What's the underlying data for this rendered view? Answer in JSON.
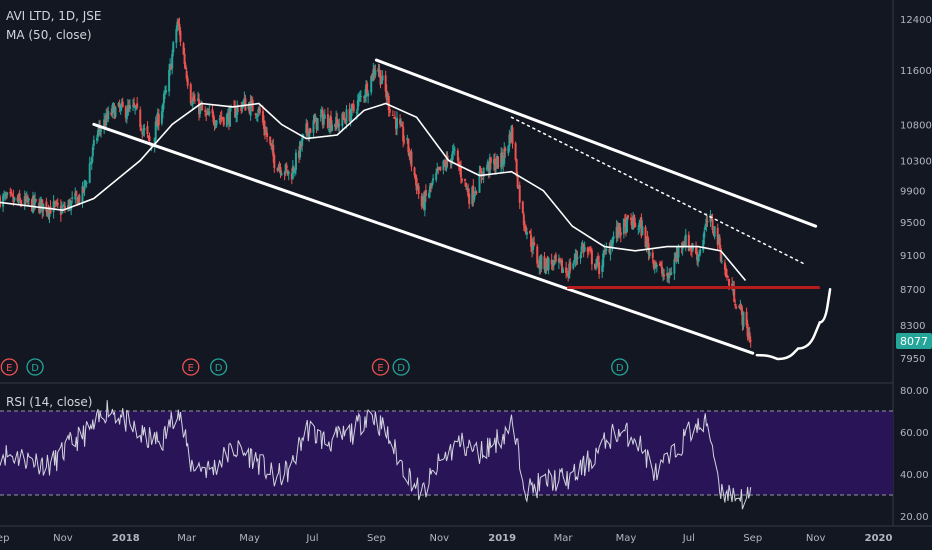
{
  "header": {
    "title": "AVI LTD, 1D, JSE",
    "indicator": "MA (50, close)"
  },
  "rsi_panel": {
    "label": "RSI (14, close)"
  },
  "last_price": "8077",
  "colors": {
    "background": "#131722",
    "up": "#26a69a",
    "down": "#ef5350",
    "ma": "#ffffff",
    "channel": "#ffffff",
    "support": "#b71c1c",
    "rsi_band": "#2a1458",
    "rsi_line": "#d1d4dc",
    "last_price_bg": "#26a69a"
  },
  "chart_data": [
    {
      "type": "candlestick",
      "title": "AVI LTD, 1D, JSE",
      "y_axis": {
        "ticks": [
          12400,
          11600,
          10800,
          10300,
          9900,
          9500,
          9100,
          8700,
          8300,
          7950
        ],
        "tick_labels": [
          "12400",
          "11600",
          "10800",
          "10300",
          "9900",
          "9500",
          "9100",
          "8700",
          "8300",
          "7950"
        ],
        "scale": "log",
        "ylim": [
          7850,
          12700
        ]
      },
      "x_axis": {
        "tick_labels": [
          "Sep",
          "Nov",
          "2018",
          "Mar",
          "May",
          "Jul",
          "Sep",
          "Nov",
          "2019",
          "Mar",
          "May",
          "Jul",
          "Sep",
          "Nov",
          "2020"
        ],
        "range": [
          "2017-09-01",
          "2020-01-15"
        ]
      },
      "price_path": [
        [
          "2017-09-01",
          9800
        ],
        [
          "2017-09-20",
          9750
        ],
        [
          "2017-10-15",
          9700
        ],
        [
          "2017-11-01",
          9650
        ],
        [
          "2017-11-20",
          9850
        ],
        [
          "2017-12-05",
          10700
        ],
        [
          "2017-12-20",
          11000
        ],
        [
          "2018-01-10",
          11000
        ],
        [
          "2018-01-25",
          10500
        ],
        [
          "2018-02-10",
          11300
        ],
        [
          "2018-02-20",
          12350
        ],
        [
          "2018-03-05",
          11200
        ],
        [
          "2018-03-20",
          10900
        ],
        [
          "2018-04-10",
          10900
        ],
        [
          "2018-04-25",
          11100
        ],
        [
          "2018-05-10",
          11000
        ],
        [
          "2018-05-25",
          10300
        ],
        [
          "2018-06-10",
          10100
        ],
        [
          "2018-06-25",
          10700
        ],
        [
          "2018-07-10",
          10900
        ],
        [
          "2018-07-25",
          10800
        ],
        [
          "2018-08-10",
          11000
        ],
        [
          "2018-08-25",
          11400
        ],
        [
          "2018-09-01",
          11700
        ],
        [
          "2018-09-15",
          11000
        ],
        [
          "2018-10-01",
          10500
        ],
        [
          "2018-10-15",
          9700
        ],
        [
          "2018-10-30",
          10100
        ],
        [
          "2018-11-15",
          10400
        ],
        [
          "2018-12-01",
          9800
        ],
        [
          "2018-12-15",
          10200
        ],
        [
          "2019-01-01",
          10300
        ],
        [
          "2019-01-10",
          10700
        ],
        [
          "2019-01-20",
          9600
        ],
        [
          "2019-02-05",
          9000
        ],
        [
          "2019-02-20",
          9000
        ],
        [
          "2019-03-05",
          8900
        ],
        [
          "2019-03-20",
          9200
        ],
        [
          "2019-04-05",
          8950
        ],
        [
          "2019-04-20",
          9350
        ],
        [
          "2019-05-05",
          9500
        ],
        [
          "2019-05-15",
          9450
        ],
        [
          "2019-05-25",
          9100
        ],
        [
          "2019-06-10",
          8800
        ],
        [
          "2019-06-25",
          9300
        ],
        [
          "2019-07-10",
          9100
        ],
        [
          "2019-07-20",
          9550
        ],
        [
          "2019-07-28",
          9350
        ],
        [
          "2019-08-05",
          8900
        ],
        [
          "2019-08-15",
          8600
        ],
        [
          "2019-08-25",
          8300
        ],
        [
          "2019-09-01",
          8077
        ]
      ],
      "ma50_path": [
        [
          "2017-09-01",
          9750
        ],
        [
          "2017-11-01",
          9650
        ],
        [
          "2017-12-01",
          9800
        ],
        [
          "2018-01-15",
          10300
        ],
        [
          "2018-02-15",
          10800
        ],
        [
          "2018-03-15",
          11100
        ],
        [
          "2018-04-15",
          11050
        ],
        [
          "2018-05-10",
          11100
        ],
        [
          "2018-06-01",
          10800
        ],
        [
          "2018-06-25",
          10600
        ],
        [
          "2018-07-25",
          10650
        ],
        [
          "2018-08-20",
          11000
        ],
        [
          "2018-09-10",
          11100
        ],
        [
          "2018-10-10",
          10900
        ],
        [
          "2018-11-10",
          10300
        ],
        [
          "2018-12-10",
          10100
        ],
        [
          "2019-01-10",
          10150
        ],
        [
          "2019-02-10",
          9900
        ],
        [
          "2019-03-10",
          9450
        ],
        [
          "2019-04-10",
          9200
        ],
        [
          "2019-05-10",
          9150
        ],
        [
          "2019-06-10",
          9200
        ],
        [
          "2019-07-10",
          9200
        ],
        [
          "2019-08-01",
          9150
        ],
        [
          "2019-08-25",
          8800
        ]
      ],
      "last_value": 8077,
      "annotations": {
        "channel_upper": [
          [
            "2018-09-01",
            11750
          ],
          [
            "2019-11-01",
            9450
          ]
        ],
        "channel_lower": [
          [
            "2017-12-01",
            10800
          ],
          [
            "2019-09-01",
            8000
          ]
        ],
        "dotted_trend": [
          [
            "2019-01-10",
            10900
          ],
          [
            "2019-10-20",
            9000
          ]
        ],
        "support_level": {
          "value": 8720,
          "from": "2019-03-05",
          "to": "2019-11-05"
        },
        "projected_curve": [
          [
            "2019-09-05",
            7980
          ],
          [
            "2019-09-25",
            7940
          ],
          [
            "2019-10-15",
            8050
          ],
          [
            "2019-11-05",
            8330
          ],
          [
            "2019-11-15",
            8700
          ]
        ],
        "events": [
          {
            "type": "E",
            "date": "2017-09-10"
          },
          {
            "type": "D",
            "date": "2017-10-05"
          },
          {
            "type": "E",
            "date": "2018-03-05"
          },
          {
            "type": "D",
            "date": "2018-04-01"
          },
          {
            "type": "E",
            "date": "2018-09-05"
          },
          {
            "type": "D",
            "date": "2018-09-25"
          },
          {
            "type": "D",
            "date": "2019-04-25"
          }
        ]
      }
    },
    {
      "type": "line",
      "title": "RSI (14, close)",
      "y_axis": {
        "ticks": [
          80,
          60,
          40,
          20
        ],
        "tick_labels": [
          "80.00",
          "60.00",
          "40.00",
          "20.00"
        ],
        "ylim": [
          17,
          82
        ]
      },
      "overbought": 70,
      "oversold": 30,
      "series": [
        {
          "name": "RSI (14, close)",
          "points": [
            [
              "2017-09-01",
              50
            ],
            [
              "2017-10-01",
              47
            ],
            [
              "2017-10-20",
              44
            ],
            [
              "2017-11-10",
              55
            ],
            [
              "2017-12-01",
              62
            ],
            [
              "2017-12-15",
              72
            ],
            [
              "2018-01-01",
              65
            ],
            [
              "2018-01-15",
              58
            ],
            [
              "2018-02-05",
              55
            ],
            [
              "2018-02-20",
              72
            ],
            [
              "2018-03-05",
              45
            ],
            [
              "2018-03-25",
              42
            ],
            [
              "2018-04-15",
              52
            ],
            [
              "2018-05-05",
              48
            ],
            [
              "2018-05-25",
              38
            ],
            [
              "2018-06-10",
              42
            ],
            [
              "2018-06-25",
              62
            ],
            [
              "2018-07-15",
              55
            ],
            [
              "2018-08-10",
              60
            ],
            [
              "2018-08-25",
              70
            ],
            [
              "2018-09-10",
              60
            ],
            [
              "2018-09-25",
              45
            ],
            [
              "2018-10-15",
              30
            ],
            [
              "2018-11-01",
              45
            ],
            [
              "2018-11-20",
              55
            ],
            [
              "2018-12-10",
              50
            ],
            [
              "2019-01-01",
              58
            ],
            [
              "2019-01-10",
              64
            ],
            [
              "2019-01-25",
              32
            ],
            [
              "2019-02-15",
              37
            ],
            [
              "2019-03-10",
              38
            ],
            [
              "2019-03-30",
              48
            ],
            [
              "2019-04-20",
              60
            ],
            [
              "2019-05-10",
              58
            ],
            [
              "2019-05-30",
              40
            ],
            [
              "2019-06-15",
              48
            ],
            [
              "2019-07-01",
              60
            ],
            [
              "2019-07-20",
              64
            ],
            [
              "2019-08-01",
              32
            ],
            [
              "2019-08-15",
              30
            ],
            [
              "2019-08-25",
              28
            ],
            [
              "2019-09-01",
              30
            ]
          ]
        }
      ]
    }
  ]
}
